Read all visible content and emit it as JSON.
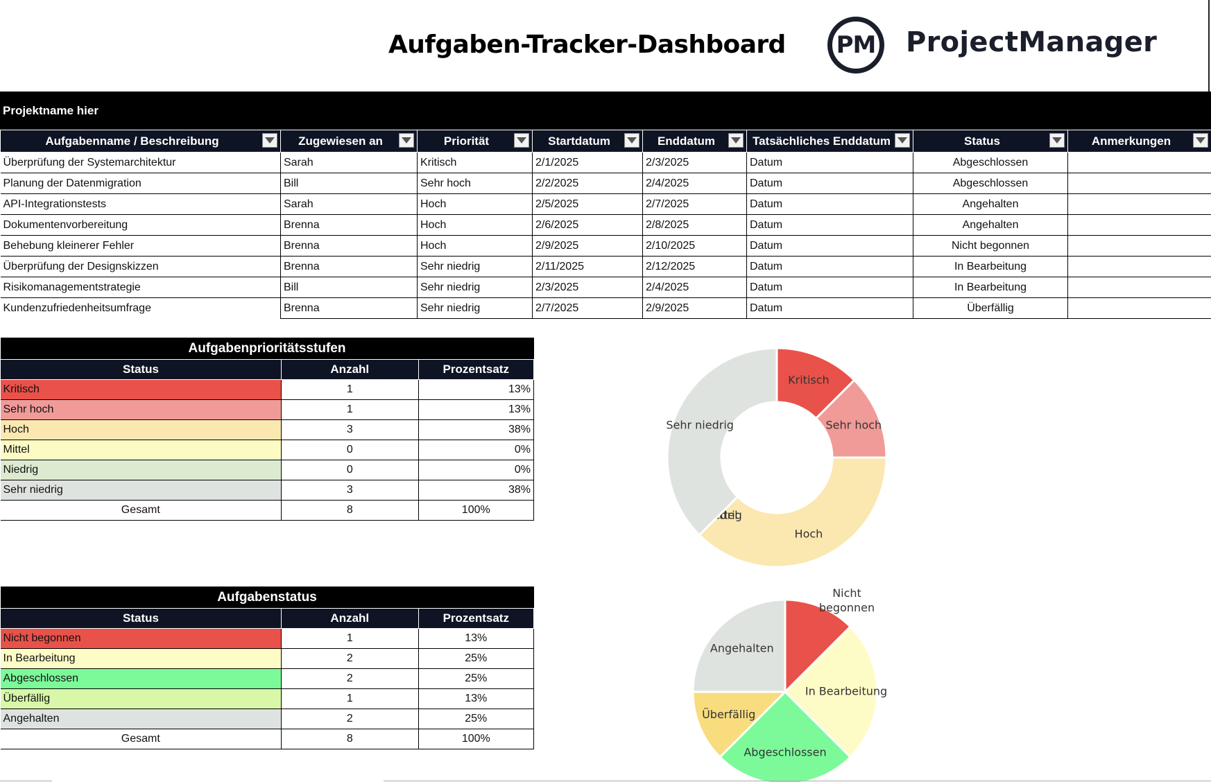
{
  "header": {
    "title": "Aufgaben-Tracker-Dashboard",
    "logo_mark": "PM",
    "logo_text": "ProjectManager"
  },
  "project": {
    "name": "Projektname hier"
  },
  "tasks": {
    "columns": [
      "Aufgabenname / Beschreibung",
      "Zugewiesen an",
      "Priorität",
      "Startdatum",
      "Enddatum",
      "Tatsächliches Enddatum",
      "Status",
      "Anmerkungen"
    ],
    "rows": [
      [
        "Überprüfung der Systemarchitektur",
        "Sarah",
        "Kritisch",
        "2/1/2025",
        "2/3/2025",
        "Datum",
        "Abgeschlossen",
        ""
      ],
      [
        "Planung der Datenmigration",
        "Bill",
        "Sehr hoch",
        "2/2/2025",
        "2/4/2025",
        "Datum",
        "Abgeschlossen",
        ""
      ],
      [
        "API-Integrationstests",
        "Sarah",
        "Hoch",
        "2/5/2025",
        "2/7/2025",
        "Datum",
        "Angehalten",
        ""
      ],
      [
        "Dokumentenvorbereitung",
        "Brenna",
        "Hoch",
        "2/6/2025",
        "2/8/2025",
        "Datum",
        "Angehalten",
        ""
      ],
      [
        "Behebung kleinerer Fehler",
        "Brenna",
        "Hoch",
        "2/9/2025",
        "2/10/2025",
        "Datum",
        "Nicht begonnen",
        ""
      ],
      [
        "Überprüfung der Designskizzen",
        "Brenna",
        "Sehr niedrig",
        "2/11/2025",
        "2/12/2025",
        "Datum",
        "In Bearbeitung",
        ""
      ],
      [
        "Risikomanagementstrategie",
        "Bill",
        "Sehr niedrig",
        "2/3/2025",
        "2/4/2025",
        "Datum",
        "In Bearbeitung",
        ""
      ],
      [
        "Kundenzufriedenheitsumfrage",
        "Brenna",
        "Sehr niedrig",
        "2/7/2025",
        "2/9/2025",
        "Datum",
        "Überfällig",
        ""
      ]
    ]
  },
  "priority_table": {
    "caption": "Aufgabenprioritätsstufen",
    "headers": [
      "Status",
      "Anzahl",
      "Prozentsatz"
    ],
    "rows": [
      {
        "label": "Kritisch",
        "count": "1",
        "pct": "13%",
        "color": "#e8524a"
      },
      {
        "label": "Sehr hoch",
        "count": "1",
        "pct": "13%",
        "color": "#f09b98"
      },
      {
        "label": "Hoch",
        "count": "3",
        "pct": "38%",
        "color": "#fbe8b0"
      },
      {
        "label": "Mittel",
        "count": "0",
        "pct": "0%",
        "color": "#fdfbc4"
      },
      {
        "label": "Niedrig",
        "count": "0",
        "pct": "0%",
        "color": "#dcebcf"
      },
      {
        "label": "Sehr niedrig",
        "count": "3",
        "pct": "38%",
        "color": "#dfe3e0"
      }
    ],
    "total": {
      "label": "Gesamt",
      "count": "8",
      "pct": "100%"
    }
  },
  "status_table": {
    "caption": "Aufgabenstatus",
    "headers": [
      "Status",
      "Anzahl",
      "Prozentsatz"
    ],
    "rows": [
      {
        "label": "Nicht begonnen",
        "count": "1",
        "pct": "13%",
        "color": "#e8524a"
      },
      {
        "label": "In Bearbeitung",
        "count": "2",
        "pct": "25%",
        "color": "#fefcc6"
      },
      {
        "label": "Abgeschlossen",
        "count": "2",
        "pct": "25%",
        "color": "#7cfa9a"
      },
      {
        "label": "Überfällig",
        "count": "1",
        "pct": "13%",
        "color": "#d8f7a8"
      },
      {
        "label": "Angehalten",
        "count": "2",
        "pct": "25%",
        "color": "#dfe3e0"
      }
    ],
    "total": {
      "label": "Gesamt",
      "count": "8",
      "pct": "100%"
    }
  },
  "chart_data": [
    {
      "type": "pie",
      "variant": "donut",
      "series": [
        {
          "label": "Kritisch",
          "value": 1,
          "color": "#e8524a"
        },
        {
          "label": "Sehr hoch",
          "value": 1,
          "color": "#f09b98"
        },
        {
          "label": "Hoch",
          "value": 3,
          "color": "#fbe8b0"
        },
        {
          "label": "Mittel",
          "value": 0,
          "color": "#fdfbc4"
        },
        {
          "label": "Niedrig",
          "value": 0,
          "color": "#dcebcf"
        },
        {
          "label": "Sehr niedrig",
          "value": 3,
          "color": "#dfe3e0"
        }
      ]
    },
    {
      "type": "pie",
      "series": [
        {
          "label": "Nicht begonnen",
          "value": 1,
          "color": "#e8524a"
        },
        {
          "label": "In Bearbeitung",
          "value": 2,
          "color": "#fefcc6"
        },
        {
          "label": "Abgeschlossen",
          "value": 2,
          "color": "#7cfa9a"
        },
        {
          "label": "Überfällig",
          "value": 1,
          "color": "#f8dc7e"
        },
        {
          "label": "Angehalten",
          "value": 2,
          "color": "#dfe3e0"
        }
      ]
    }
  ]
}
